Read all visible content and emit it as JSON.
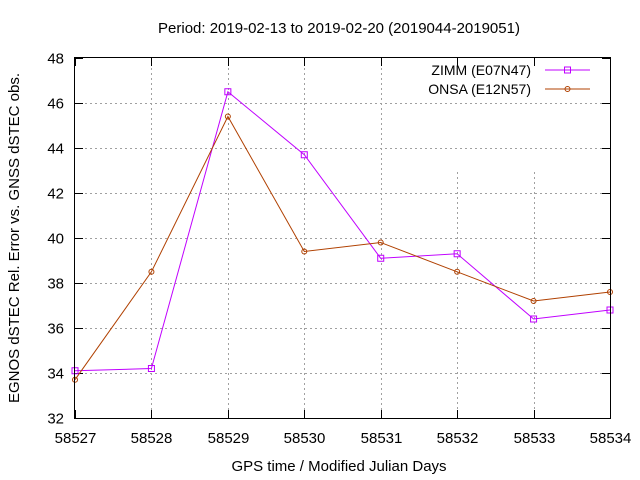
{
  "chart_data": {
    "type": "line",
    "title": "Period: 2019-02-13 to 2019-02-20 (2019044-2019051)",
    "xlabel": "GPS time / Modified Julian Days",
    "ylabel": "EGNOS dSTEC Rel. Error vs. GNSS dSTEC obs.",
    "xlim": [
      58527,
      58534
    ],
    "ylim": [
      32,
      48
    ],
    "xticks": [
      "58527",
      "58528",
      "58529",
      "58530",
      "58531",
      "58532",
      "58533",
      "58534"
    ],
    "yticks": [
      "32",
      "34",
      "36",
      "38",
      "40",
      "42",
      "44",
      "46",
      "48"
    ],
    "grid": true,
    "legend_position": "top-right",
    "x": [
      58527,
      58528,
      58529,
      58530,
      58531,
      58532,
      58533,
      58534
    ],
    "series": [
      {
        "name": "ZIMM (E07N47)",
        "color": "#c000ff",
        "marker": "square",
        "values": [
          34.1,
          34.2,
          46.5,
          43.7,
          39.1,
          39.3,
          36.4,
          36.8
        ]
      },
      {
        "name": "ONSA (E12N57)",
        "color": "#b04000",
        "marker": "circle",
        "values": [
          33.7,
          38.5,
          45.4,
          39.4,
          39.8,
          38.5,
          37.2,
          37.6
        ]
      }
    ]
  }
}
